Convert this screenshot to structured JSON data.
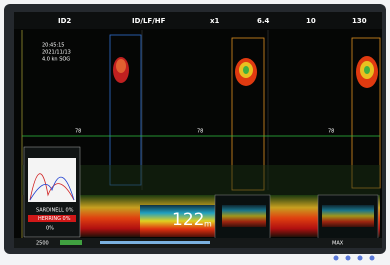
{
  "header": {
    "mode": "ID2",
    "frequency": "ID/LF/HF",
    "zoom": "x1",
    "gain": "6.4",
    "range_start": "10",
    "range_end": "130"
  },
  "info": {
    "time": "20:45:15",
    "date": "2021/11/13",
    "speed": "4.0 kn SOG"
  },
  "depth_markers": [
    "78",
    "78",
    "78"
  ],
  "depth": {
    "value": "122",
    "unit": "m"
  },
  "species": {
    "rows": [
      "SARDINELL 0%",
      "HERRING 0%",
      "0%"
    ]
  },
  "status": {
    "range": "2500",
    "max": "MAX"
  }
}
